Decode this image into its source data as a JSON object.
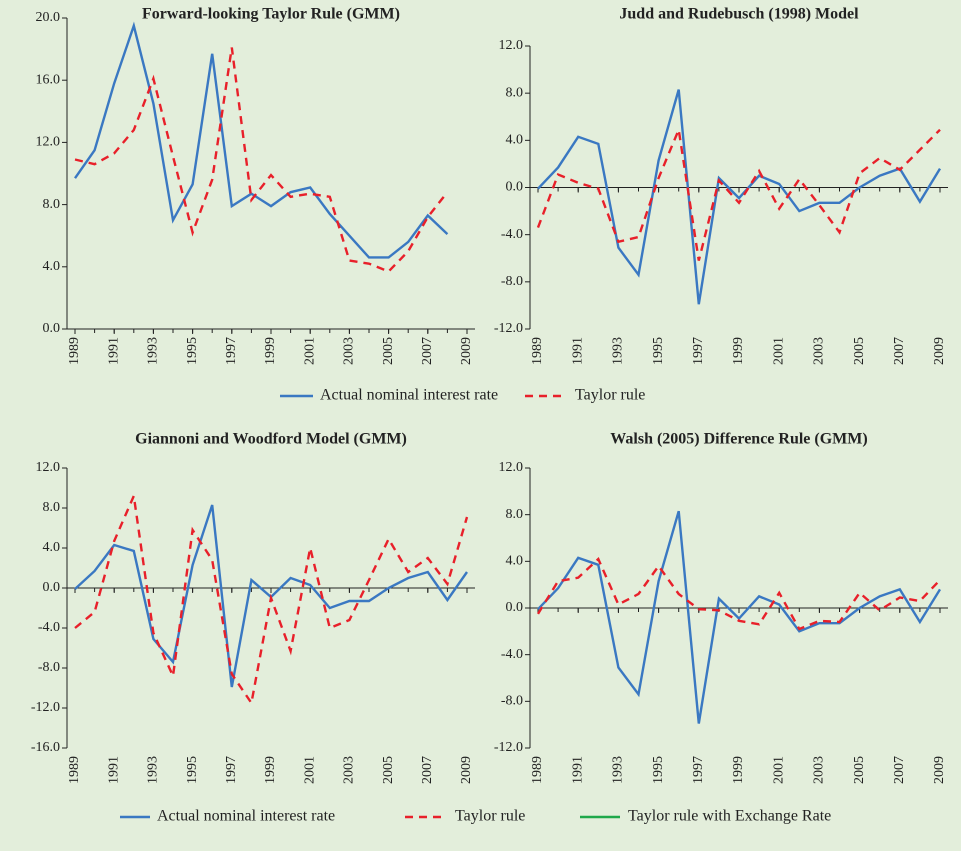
{
  "chart_data": [
    {
      "type": "line",
      "title": "Forward-looking Taylor Rule (GMM)",
      "x": [
        1989,
        1990,
        1991,
        1992,
        1993,
        1994,
        1995,
        1996,
        1997,
        1998,
        1999,
        2000,
        2001,
        2002,
        2003,
        2004,
        2005,
        2006,
        2007,
        2008,
        2009
      ],
      "xlim": [
        1989,
        2009
      ],
      "xticks": [
        1989,
        1991,
        1993,
        1995,
        1997,
        1999,
        2001,
        2003,
        2005,
        2007,
        2009
      ],
      "ylim": [
        0,
        20
      ],
      "yticks": [
        {
          "value": 0,
          "label": "0.0"
        },
        {
          "value": 4,
          "label": "4.0"
        },
        {
          "value": 8,
          "label": "8.0"
        },
        {
          "value": 12,
          "label": "12.0"
        },
        {
          "value": 16,
          "label": "16.0"
        },
        {
          "value": 20,
          "label": "20.0"
        }
      ],
      "series": [
        {
          "name": "Actual nominal interest rate",
          "color": "#3a78c2",
          "dashed": false,
          "values": [
            9.7,
            11.5,
            15.8,
            19.5,
            14.5,
            7.0,
            9.3,
            17.7,
            7.9,
            8.7,
            7.9,
            8.8,
            9.1,
            7.4,
            6.0,
            4.6,
            4.6,
            5.6,
            7.3,
            6.1,
            null
          ]
        },
        {
          "name": "Taylor rule",
          "color": "#e8202a",
          "dashed": true,
          "values": [
            10.9,
            10.6,
            11.3,
            12.8,
            16.1,
            11.1,
            6.2,
            9.6,
            18.1,
            8.3,
            9.9,
            8.5,
            8.7,
            8.5,
            4.4,
            4.2,
            3.7,
            5.0,
            7.2,
            8.8,
            null
          ]
        }
      ]
    },
    {
      "type": "line",
      "title": "Judd and Rudebusch (1998) Model",
      "x": [
        1989,
        1990,
        1991,
        1992,
        1993,
        1994,
        1995,
        1996,
        1997,
        1998,
        1999,
        2000,
        2001,
        2002,
        2003,
        2004,
        2005,
        2006,
        2007,
        2008,
        2009
      ],
      "xlim": [
        1989,
        2009
      ],
      "xticks": [
        1989,
        1991,
        1993,
        1995,
        1997,
        1999,
        2001,
        2003,
        2005,
        2007,
        2009
      ],
      "ylim": [
        -12,
        12
      ],
      "yticks": [
        {
          "value": -12,
          "label": "-12.0"
        },
        {
          "value": -8,
          "label": "-8.0"
        },
        {
          "value": -4,
          "label": "-4.0"
        },
        {
          "value": 0,
          "label": "0.0"
        },
        {
          "value": 4,
          "label": "4.0"
        },
        {
          "value": 8,
          "label": "8.0"
        },
        {
          "value": 12,
          "label": "12.0"
        }
      ],
      "series": [
        {
          "color": "#3a78c2",
          "dashed": false,
          "values": [
            -0.1,
            1.7,
            4.3,
            3.7,
            -5.1,
            -7.4,
            2.3,
            8.3,
            -9.9,
            0.8,
            -0.9,
            1.0,
            0.3,
            -2.0,
            -1.3,
            -1.3,
            0.0,
            1.0,
            1.6,
            -1.2,
            1.6
          ]
        },
        {
          "color": "#e8202a",
          "dashed": true,
          "values": [
            -3.4,
            1.1,
            0.4,
            -0.1,
            -4.6,
            -4.2,
            0.8,
            4.9,
            -6.2,
            0.6,
            -1.3,
            1.4,
            -1.8,
            0.7,
            -1.5,
            -3.8,
            1.2,
            2.5,
            1.5,
            3.2,
            4.9
          ]
        }
      ]
    },
    {
      "type": "line",
      "title": "Giannoni and Woodford Model (GMM)",
      "x": [
        1989,
        1990,
        1991,
        1992,
        1993,
        1994,
        1995,
        1996,
        1997,
        1998,
        1999,
        2000,
        2001,
        2002,
        2003,
        2004,
        2005,
        2006,
        2007,
        2008,
        2009
      ],
      "xlim": [
        1989,
        2009
      ],
      "xticks": [
        1989,
        1991,
        1993,
        1995,
        1997,
        1999,
        2001,
        2003,
        2005,
        2007,
        2009
      ],
      "ylim": [
        -16,
        12
      ],
      "yticks": [
        {
          "value": -16,
          "label": "-16.0"
        },
        {
          "value": -12,
          "label": "-12.0"
        },
        {
          "value": -8,
          "label": "-8.0"
        },
        {
          "value": -4,
          "label": "-4.0"
        },
        {
          "value": 0,
          "label": "0.0"
        },
        {
          "value": 4,
          "label": "4.0"
        },
        {
          "value": 8,
          "label": "8.0"
        },
        {
          "value": 12,
          "label": "12.0"
        }
      ],
      "series": [
        {
          "name": "Actual nominal interest rate",
          "color": "#3a78c2",
          "dashed": false,
          "values": [
            -0.1,
            1.7,
            4.3,
            3.7,
            -5.1,
            -7.4,
            2.3,
            8.3,
            -9.9,
            0.8,
            -0.9,
            1.0,
            0.3,
            -2.0,
            -1.3,
            -1.3,
            0.0,
            1.0,
            1.6,
            -1.2,
            1.6
          ]
        },
        {
          "name": "Taylor rule",
          "color": "#e8202a",
          "dashed": true,
          "values": [
            -4.0,
            -2.4,
            4.7,
            9.2,
            -4.5,
            -8.8,
            5.8,
            2.8,
            -8.6,
            -11.5,
            -1.0,
            -6.3,
            4.0,
            -4.0,
            -3.2,
            0.8,
            4.9,
            1.6,
            3.0,
            0.4,
            7.1
          ]
        },
        {
          "name": "Taylor rule with Exchange Rate",
          "color": "#1fa84a",
          "dashed": false,
          "values": [
            null,
            null,
            null,
            null,
            null,
            null,
            null,
            null,
            null,
            null,
            null,
            null,
            null,
            null,
            null,
            null,
            null,
            null,
            null,
            null,
            null
          ]
        }
      ]
    },
    {
      "type": "line",
      "title": "Walsh (2005) Difference Rule (GMM)",
      "x": [
        1989,
        1990,
        1991,
        1992,
        1993,
        1994,
        1995,
        1996,
        1997,
        1998,
        1999,
        2000,
        2001,
        2002,
        2003,
        2004,
        2005,
        2006,
        2007,
        2008,
        2009
      ],
      "xlim": [
        1989,
        2009
      ],
      "xticks": [
        1989,
        1991,
        1993,
        1995,
        1997,
        1999,
        2001,
        2003,
        2005,
        2007,
        2009
      ],
      "ylim": [
        -12,
        12
      ],
      "yticks": [
        {
          "value": -12,
          "label": "-12.0"
        },
        {
          "value": -8,
          "label": "-8.0"
        },
        {
          "value": -4,
          "label": "-4.0"
        },
        {
          "value": 0,
          "label": "0.0"
        },
        {
          "value": 4,
          "label": "4.0"
        },
        {
          "value": 8,
          "label": "8.0"
        },
        {
          "value": 12,
          "label": "12.0"
        }
      ],
      "series": [
        {
          "color": "#3a78c2",
          "dashed": false,
          "values": [
            -0.1,
            1.7,
            4.3,
            3.7,
            -5.1,
            -7.4,
            2.3,
            8.3,
            -9.9,
            0.8,
            -0.9,
            1.0,
            0.3,
            -2.0,
            -1.3,
            -1.3,
            0.0,
            1.0,
            1.6,
            -1.2,
            1.6
          ]
        },
        {
          "color": "#e8202a",
          "dashed": true,
          "values": [
            -0.5,
            2.3,
            2.6,
            4.2,
            0.3,
            1.2,
            3.6,
            1.2,
            -0.1,
            -0.2,
            -1.1,
            -1.4,
            1.3,
            -1.8,
            -1.1,
            -1.2,
            1.3,
            -0.2,
            0.9,
            0.6,
            2.4
          ]
        }
      ]
    }
  ]
}
